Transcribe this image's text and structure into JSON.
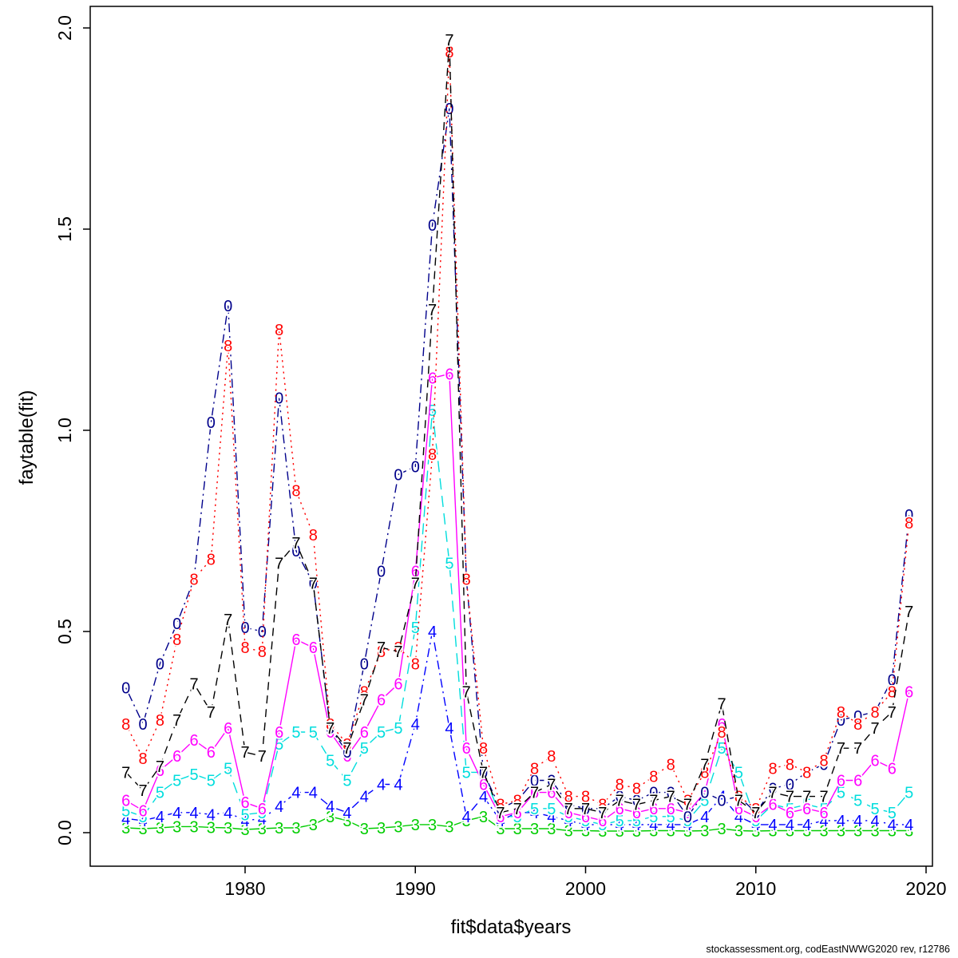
{
  "footer": {
    "text": "stockassessment.org, codEastNWWG2020 rev, r12786"
  },
  "chart_data": {
    "type": "line",
    "title": "",
    "xlabel": "fit$data$years",
    "ylabel": "faytable(fit)",
    "xlim": [
      1971,
      2021
    ],
    "ylim": [
      0.0,
      2.0
    ],
    "grid": false,
    "legend": "none (series identified by digit glyph markers at each point)",
    "xticks": [
      1980,
      1990,
      2000,
      2010,
      2020
    ],
    "yticks": [
      0.0,
      0.5,
      1.0,
      1.5,
      2.0
    ],
    "ytick_labels": [
      "0.0",
      "0.5",
      "1.0",
      "1.5",
      "2.0"
    ],
    "x": [
      1973,
      1974,
      1975,
      1976,
      1977,
      1978,
      1979,
      1980,
      1981,
      1982,
      1983,
      1984,
      1985,
      1986,
      1987,
      1988,
      1989,
      1990,
      1991,
      1992,
      1993,
      1994,
      1995,
      1996,
      1997,
      1998,
      1999,
      2000,
      2001,
      2002,
      2003,
      2004,
      2005,
      2006,
      2007,
      2008,
      2009,
      2010,
      2011,
      2012,
      2013,
      2014,
      2015,
      2016,
      2017,
      2018,
      2019
    ],
    "series": [
      {
        "label": "3",
        "color": "#00CD00",
        "line_style": "solid",
        "values": [
          0.012,
          0.01,
          0.012,
          0.015,
          0.015,
          0.013,
          0.012,
          0.008,
          0.01,
          0.012,
          0.012,
          0.02,
          0.04,
          0.03,
          0.01,
          0.012,
          0.015,
          0.02,
          0.02,
          0.015,
          0.03,
          0.04,
          0.01,
          0.01,
          0.01,
          0.01,
          0.005,
          0.005,
          0.004,
          0.004,
          0.004,
          0.005,
          0.005,
          0.004,
          0.005,
          0.01,
          0.005,
          0.004,
          0.005,
          0.005,
          0.005,
          0.005,
          0.005,
          0.005,
          0.005,
          0.005,
          0.005
        ]
      },
      {
        "label": "4",
        "color": "#0000FF",
        "line_style": "dotdash",
        "values": [
          0.035,
          0.03,
          0.04,
          0.05,
          0.05,
          0.045,
          0.05,
          0.03,
          0.035,
          0.065,
          0.1,
          0.1,
          0.065,
          0.05,
          0.09,
          0.12,
          0.12,
          0.27,
          0.5,
          0.26,
          0.04,
          0.09,
          0.03,
          0.05,
          0.05,
          0.04,
          0.03,
          0.02,
          0.02,
          0.02,
          0.02,
          0.02,
          0.02,
          0.02,
          0.04,
          0.09,
          0.04,
          0.02,
          0.02,
          0.02,
          0.02,
          0.03,
          0.03,
          0.03,
          0.03,
          0.02,
          0.02
        ]
      },
      {
        "label": "5",
        "color": "#00DDDD",
        "line_style": "longdash",
        "values": [
          0.055,
          0.04,
          0.1,
          0.13,
          0.145,
          0.13,
          0.16,
          0.045,
          0.05,
          0.22,
          0.25,
          0.25,
          0.18,
          0.13,
          0.21,
          0.25,
          0.26,
          0.51,
          1.05,
          0.67,
          0.15,
          0.15,
          0.04,
          0.04,
          0.06,
          0.06,
          0.04,
          0.03,
          0.02,
          0.03,
          0.03,
          0.04,
          0.04,
          0.03,
          0.08,
          0.21,
          0.15,
          0.03,
          0.07,
          0.06,
          0.07,
          0.06,
          0.1,
          0.08,
          0.06,
          0.05,
          0.1
        ]
      },
      {
        "label": "6",
        "color": "#FF00FF",
        "line_style": "solid",
        "values": [
          0.08,
          0.055,
          0.155,
          0.19,
          0.23,
          0.2,
          0.26,
          0.075,
          0.06,
          0.25,
          0.48,
          0.46,
          0.25,
          0.19,
          0.25,
          0.33,
          0.37,
          0.65,
          1.13,
          1.14,
          0.21,
          0.12,
          0.04,
          0.05,
          0.1,
          0.1,
          0.05,
          0.04,
          0.03,
          0.06,
          0.05,
          0.06,
          0.06,
          0.05,
          0.1,
          0.27,
          0.06,
          0.04,
          0.07,
          0.05,
          0.06,
          0.05,
          0.13,
          0.13,
          0.18,
          0.16,
          0.35
        ]
      },
      {
        "label": "0",
        "color": "#00008B",
        "line_style": "dotdash",
        "values": [
          0.36,
          0.27,
          0.42,
          0.52,
          0.63,
          1.02,
          1.31,
          0.51,
          0.5,
          1.08,
          0.7,
          0.62,
          0.26,
          0.2,
          0.42,
          0.65,
          0.89,
          0.91,
          1.51,
          1.8,
          0.63,
          0.15,
          0.06,
          0.08,
          0.13,
          0.13,
          0.07,
          0.06,
          0.06,
          0.09,
          0.08,
          0.1,
          0.1,
          0.04,
          0.1,
          0.08,
          0.09,
          0.05,
          0.11,
          0.12,
          0.15,
          0.17,
          0.28,
          0.29,
          0.3,
          0.38,
          0.79
        ]
      },
      {
        "label": "8",
        "color": "#FF0000",
        "line_style": "dotted",
        "values": [
          0.27,
          0.185,
          0.28,
          0.48,
          0.63,
          0.68,
          1.21,
          0.46,
          0.45,
          1.25,
          0.85,
          0.74,
          0.27,
          0.22,
          0.35,
          0.45,
          0.46,
          0.42,
          0.94,
          1.94,
          0.63,
          0.21,
          0.07,
          0.08,
          0.16,
          0.19,
          0.09,
          0.09,
          0.07,
          0.12,
          0.11,
          0.14,
          0.17,
          0.08,
          0.15,
          0.25,
          0.09,
          0.06,
          0.16,
          0.17,
          0.15,
          0.18,
          0.3,
          0.27,
          0.3,
          0.35,
          0.77
        ]
      },
      {
        "label": "7",
        "color": "#000000",
        "line_style": "dashed",
        "values": [
          0.15,
          0.105,
          0.165,
          0.28,
          0.37,
          0.3,
          0.53,
          0.2,
          0.19,
          0.67,
          0.72,
          0.62,
          0.26,
          0.21,
          0.33,
          0.46,
          0.45,
          0.62,
          1.3,
          1.97,
          0.35,
          0.15,
          0.05,
          0.06,
          0.1,
          0.12,
          0.06,
          0.06,
          0.05,
          0.08,
          0.07,
          0.08,
          0.09,
          0.07,
          0.17,
          0.32,
          0.08,
          0.05,
          0.1,
          0.09,
          0.09,
          0.09,
          0.21,
          0.21,
          0.26,
          0.3,
          0.55
        ]
      }
    ]
  }
}
